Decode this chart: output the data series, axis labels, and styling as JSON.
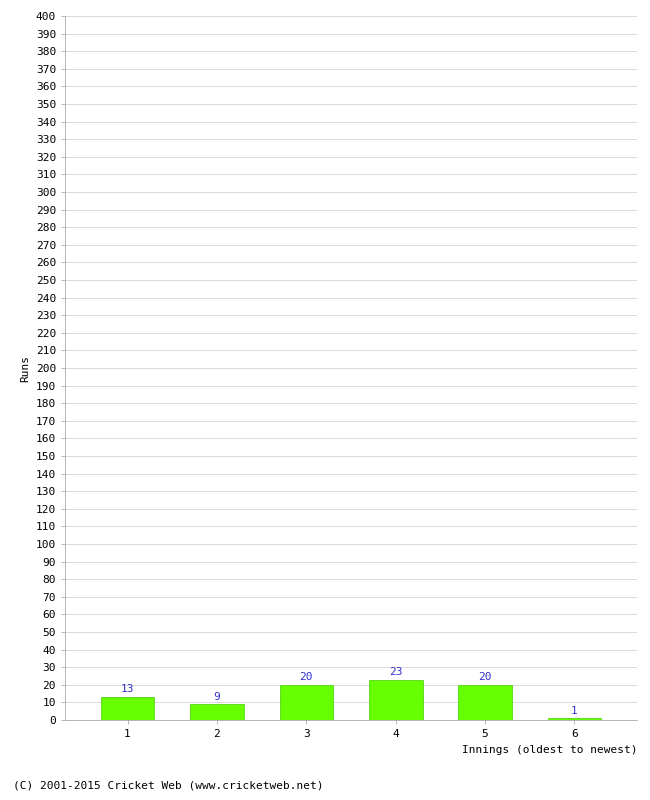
{
  "categories": [
    "1",
    "2",
    "3",
    "4",
    "5",
    "6"
  ],
  "values": [
    13,
    9,
    20,
    23,
    20,
    1
  ],
  "bar_color": "#66ff00",
  "bar_edge_color": "#44cc00",
  "label_color": "#3333cc",
  "ylabel": "Runs",
  "xlabel": "Innings (oldest to newest)",
  "footer": "(C) 2001-2015 Cricket Web (www.cricketweb.net)",
  "ylim": [
    0,
    400
  ],
  "ytick_step": 10,
  "background_color": "#ffffff",
  "grid_color": "#cccccc",
  "tick_fontsize": 8,
  "axis_label_fontsize": 8,
  "footer_fontsize": 8,
  "value_label_fontsize": 8
}
